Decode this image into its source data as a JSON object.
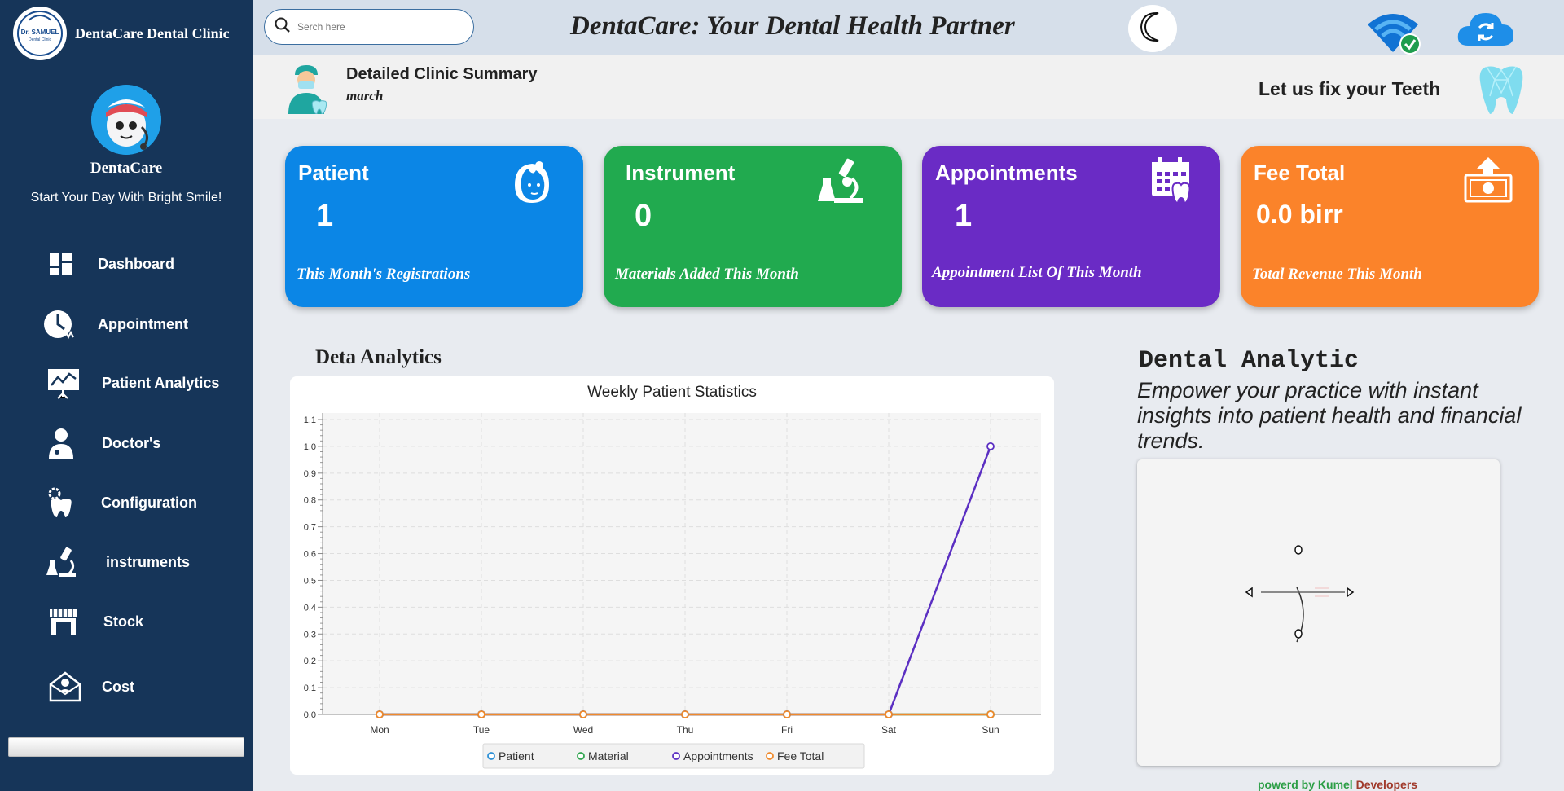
{
  "sidebar": {
    "brand": "DentaCare Dental Clinic",
    "logo_text": "Dr. SAMUEL",
    "logo_subtext": "Dental Clinic",
    "name": "DentaCare",
    "slogan": "Start Your Day With Bright Smile!",
    "items": [
      {
        "label": "Dashboard",
        "icon": "dashboard-icon"
      },
      {
        "label": "Appointment",
        "icon": "clock-icon"
      },
      {
        "label": "Patient Analytics",
        "icon": "presentation-chart-icon"
      },
      {
        "label": "Doctor's",
        "icon": "doctor-icon"
      },
      {
        "label": "Configuration",
        "icon": "gear-tooth-icon"
      },
      {
        "label": "instruments",
        "icon": "microscope-icon"
      },
      {
        "label": "Stock",
        "icon": "store-icon"
      },
      {
        "label": "Cost",
        "icon": "envelope-user-icon"
      }
    ]
  },
  "header": {
    "search_placeholder": "Serch here",
    "title": "DentaCare: Your Dental Health Partner"
  },
  "summary": {
    "title": "Detailed Clinic  Summary",
    "month": "march",
    "tagline": "Let us fix your Teeth"
  },
  "cards": [
    {
      "title": "Patient",
      "value": "1",
      "footer": "This Month's Registrations",
      "color": "#0b86e6",
      "icon": "face-icon"
    },
    {
      "title": "Instrument",
      "value": "0",
      "footer": "Materials Added This Month",
      "color": "#21aa4f",
      "icon": "microscope-icon"
    },
    {
      "title": "Appointments",
      "value": "1",
      "footer": "Appointment List Of This Month",
      "color": "#6a2bc5",
      "icon": "calendar-tooth-icon"
    },
    {
      "title": "Fee Total",
      "value": "0.0 birr",
      "footer": "Total Revenue This Month",
      "color": "#fb832a",
      "icon": "money-upload-icon"
    }
  ],
  "analytics": {
    "section_title": "Deta Analytics",
    "dental_title": "Dental Analytic",
    "dental_description": "Empower your practice with instant insights into patient health and financial trends.",
    "powered_prefix": "powerd by ",
    "powered_name1": "Kumel",
    "powered_name2": " Developers"
  },
  "chart_data": {
    "type": "line",
    "title": "Weekly Patient Statistics",
    "categories": [
      "Mon",
      "Tue",
      "Wed",
      "Thu",
      "Fri",
      "Sat",
      "Sun"
    ],
    "ylim": [
      0,
      1.1
    ],
    "yticks": [
      "0.0",
      "0.1",
      "0.2",
      "0.3",
      "0.4",
      "0.5",
      "0.6",
      "0.7",
      "0.8",
      "0.9",
      "1.0",
      "1.1"
    ],
    "grid": true,
    "legend_position": "bottom",
    "series": [
      {
        "name": "Patient",
        "color": "#2a8fd6",
        "values": [
          0,
          0,
          0,
          0,
          0,
          0,
          0
        ]
      },
      {
        "name": "Material",
        "color": "#2fa54e",
        "values": [
          0,
          0,
          0,
          0,
          0,
          0,
          0
        ]
      },
      {
        "name": "Appointments",
        "color": "#5b2fc2",
        "values": [
          0,
          0,
          0,
          0,
          0,
          0,
          1
        ]
      },
      {
        "name": "Fee Total",
        "color": "#f08a2c",
        "values": [
          0,
          0,
          0,
          0,
          0,
          0,
          0
        ]
      }
    ]
  }
}
